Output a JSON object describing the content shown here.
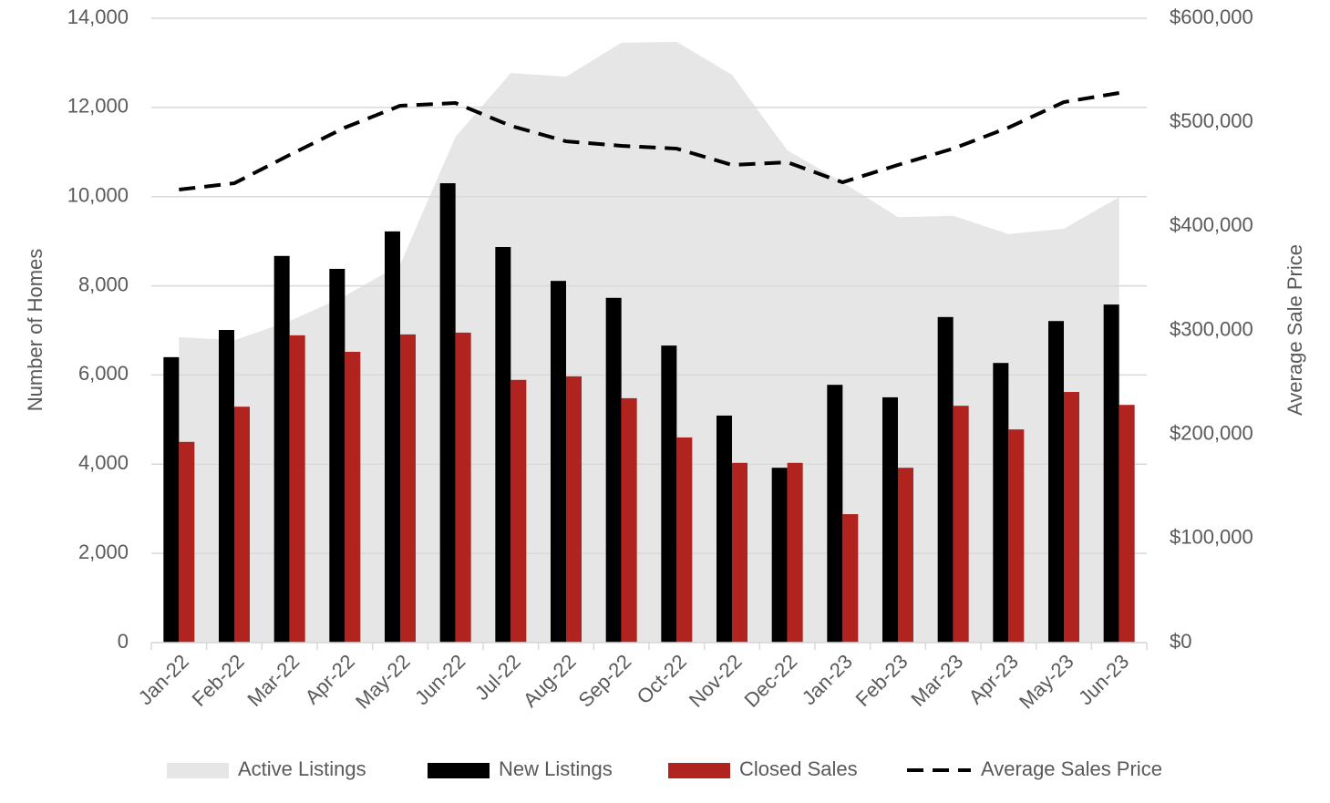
{
  "chart_data": {
    "type": "bar",
    "categories": [
      "Jan-22",
      "Feb-22",
      "Mar-22",
      "Apr-22",
      "May-22",
      "Jun-22",
      "Jul-22",
      "Aug-22",
      "Sep-22",
      "Oct-22",
      "Nov-22",
      "Dec-22",
      "Jan-23",
      "Feb-23",
      "Mar-23",
      "Apr-23",
      "May-23",
      "Jun-23"
    ],
    "y_label": "Number of Homes",
    "y2_label": "Average Sale Price",
    "ylim": [
      0,
      14000
    ],
    "yticks": [
      0,
      {
        "value": 2000,
        "label": "2,000"
      },
      {
        "value": 4000,
        "label": "4,000"
      },
      {
        "value": 6000,
        "label": "6,000"
      },
      {
        "value": 8000,
        "label": "8,000"
      },
      {
        "value": 10000,
        "label": "10,000"
      },
      {
        "value": 12000,
        "label": "12,000"
      },
      {
        "value": 14000,
        "label": "14,000"
      }
    ],
    "y2lim": [
      0,
      600000
    ],
    "y2ticks": [
      {
        "value": 0,
        "label": "$0"
      },
      {
        "value": 100000,
        "label": "$100,000"
      },
      {
        "value": 200000,
        "label": "$200,000"
      },
      {
        "value": 300000,
        "label": "$300,000"
      },
      {
        "value": 400000,
        "label": "$400,000"
      },
      {
        "value": 500000,
        "label": "$500,000"
      },
      {
        "value": 600000,
        "label": "$600,000"
      }
    ],
    "grid": true,
    "legend": "bottom",
    "series": [
      {
        "name": "Active Listings",
        "type": "area",
        "color": "#e6e6e6",
        "values": [
          6850,
          6780,
          7210,
          7770,
          8480,
          11340,
          12770,
          12690,
          13450,
          13470,
          12730,
          11040,
          10320,
          9540,
          9570,
          9160,
          9280,
          9990
        ]
      },
      {
        "name": "New Listings",
        "type": "bar",
        "color": "#000000",
        "values": [
          6400,
          7010,
          8670,
          8380,
          9220,
          10300,
          8870,
          8110,
          7730,
          6660,
          5090,
          3920,
          5780,
          5500,
          7300,
          6270,
          7210,
          7580
        ]
      },
      {
        "name": "Closed Sales",
        "type": "bar",
        "color": "#b0231e",
        "values": [
          4500,
          5290,
          6890,
          6520,
          6910,
          6950,
          5890,
          5970,
          5480,
          4600,
          4030,
          4030,
          2880,
          3920,
          5310,
          4780,
          5620,
          5330
        ]
      },
      {
        "name": "Average Sales Price",
        "type": "line",
        "line_style": "dashed",
        "axis": "y2",
        "color": "#000000",
        "values": [
          435300,
          441400,
          468600,
          494900,
          515900,
          518500,
          496600,
          481700,
          477400,
          474700,
          459000,
          461600,
          442300,
          459000,
          474700,
          494900,
          519400,
          528200
        ]
      }
    ]
  }
}
